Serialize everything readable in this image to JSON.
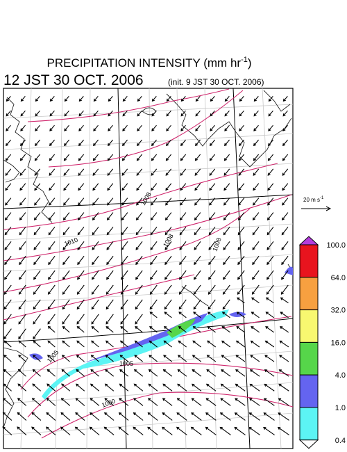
{
  "title_main": "PRECIPITATION INTENSITY (mm hr",
  "title_sup": "-1",
  "title_end": ")",
  "valid_time": "12 JST 30 OCT. 2006",
  "init_time": "(init. 9 JST 30 OCT. 2006)",
  "reference_vector": {
    "label": "20 m s",
    "sup": "-1"
  },
  "isobar_labels": [
    "1010",
    "1008",
    "1008",
    "1008",
    "1005",
    "1005",
    "1000"
  ],
  "colorbar": {
    "levels": [
      {
        "value": 100,
        "label": "100.0"
      },
      {
        "value": 64,
        "label": "64.0"
      },
      {
        "value": 32,
        "label": "32.0"
      },
      {
        "value": 16,
        "label": "16.0"
      },
      {
        "value": 4,
        "label": "4.0"
      },
      {
        "value": 1,
        "label": "1.0"
      },
      {
        "value": 0.4,
        "label": "0.4"
      }
    ],
    "colors": [
      "#e8141e",
      "#f7a040",
      "#f8f870",
      "#56d64a",
      "#6464f0",
      "#5cf4f4"
    ],
    "over_color": "#b43cdc",
    "under_color": "#ffffff"
  }
}
